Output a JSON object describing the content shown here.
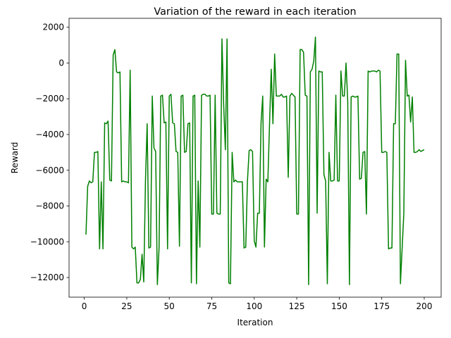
{
  "chart_data": {
    "type": "line",
    "title": "Variation of the reward in each iteration",
    "x_label": "Iteration",
    "y_label": "Reward",
    "x": [
      1,
      2,
      3,
      4,
      5,
      6,
      7,
      8,
      9,
      10,
      11,
      12,
      13,
      14,
      15,
      16,
      17,
      18,
      19,
      20,
      21,
      22,
      23,
      24,
      25,
      26,
      27,
      28,
      29,
      30,
      31,
      32,
      33,
      34,
      35,
      36,
      37,
      38,
      39,
      40,
      41,
      42,
      43,
      44,
      45,
      46,
      47,
      48,
      49,
      50,
      51,
      52,
      53,
      54,
      55,
      56,
      57,
      58,
      59,
      60,
      61,
      62,
      63,
      64,
      65,
      66,
      67,
      68,
      69,
      70,
      71,
      72,
      73,
      74,
      75,
      76,
      77,
      78,
      79,
      80,
      81,
      82,
      83,
      84,
      85,
      86,
      87,
      88,
      89,
      90,
      91,
      92,
      93,
      94,
      95,
      96,
      97,
      98,
      99,
      100,
      101,
      102,
      103,
      104,
      105,
      106,
      107,
      108,
      109,
      110,
      111,
      112,
      113,
      114,
      115,
      116,
      117,
      118,
      119,
      120,
      121,
      122,
      123,
      124,
      125,
      126,
      127,
      128,
      129,
      130,
      131,
      132,
      133,
      134,
      135,
      136,
      137,
      138,
      139,
      140,
      141,
      142,
      143,
      144,
      145,
      146,
      147,
      148,
      149,
      150,
      151,
      152,
      153,
      154,
      155,
      156,
      157,
      158,
      159,
      160,
      161,
      162,
      163,
      164,
      165,
      166,
      167,
      168,
      169,
      170,
      171,
      172,
      173,
      174,
      175,
      176,
      177,
      178,
      179,
      180,
      181,
      182,
      183,
      184,
      185,
      186,
      187,
      188,
      189,
      190,
      191,
      192,
      193,
      194,
      195,
      196,
      197,
      198,
      199,
      200
    ],
    "series": [
      {
        "name": "Reward",
        "color": "#008000",
        "values": [
          -9600,
          -6900,
          -6600,
          -6700,
          -6650,
          -5000,
          -5000,
          -4950,
          -10400,
          -6650,
          -10400,
          -3350,
          -3400,
          -3250,
          -6550,
          -6600,
          450,
          750,
          -500,
          -550,
          -500,
          -6650,
          -6600,
          -6650,
          -6650,
          -6700,
          -400,
          -10300,
          -10400,
          -10300,
          -12300,
          -12300,
          -12100,
          -10700,
          -12250,
          -6600,
          -3400,
          -10350,
          -10300,
          -1850,
          -4750,
          -4950,
          -12400,
          -10350,
          -1850,
          -1800,
          -3350,
          -3300,
          -10400,
          -1850,
          -1750,
          -3350,
          -3400,
          -4950,
          -5000,
          -10250,
          -1850,
          -1800,
          -5000,
          -4950,
          -3400,
          -3350,
          -12300,
          -1850,
          -1800,
          -12350,
          -6600,
          -10300,
          -1800,
          -1750,
          -1750,
          -1850,
          -1850,
          -1800,
          -8450,
          -8450,
          -1800,
          -8400,
          -8450,
          -8450,
          1350,
          -2300,
          -4850,
          1350,
          -12300,
          -12350,
          -5000,
          -6650,
          -6550,
          -6650,
          -6650,
          -6650,
          -6650,
          -10350,
          -10300,
          -6600,
          -4900,
          -4850,
          -4950,
          -9950,
          -10300,
          -8400,
          -8400,
          -3350,
          -1850,
          -10300,
          -6500,
          -6650,
          -3400,
          -350,
          -3400,
          500,
          -1850,
          -1850,
          -1850,
          -1750,
          -1900,
          -1900,
          -1850,
          -6400,
          -1850,
          -1700,
          -1800,
          -1900,
          -8450,
          -8450,
          750,
          750,
          600,
          -1800,
          -1850,
          -12400,
          -500,
          -350,
          100,
          1450,
          -8400,
          -450,
          -500,
          -500,
          -6250,
          -6600,
          -12350,
          -5000,
          -6600,
          -6600,
          -6550,
          -1800,
          -6600,
          -6600,
          -450,
          -1850,
          -1850,
          0,
          -2150,
          -12400,
          -1900,
          -1850,
          -1900,
          -1900,
          -1850,
          -6500,
          -6450,
          -5000,
          -4950,
          -8450,
          -450,
          -500,
          -450,
          -450,
          -450,
          -500,
          -400,
          -450,
          -5000,
          -5000,
          -4950,
          -5000,
          -10400,
          -10350,
          -10350,
          -3400,
          -3400,
          500,
          500,
          -12350,
          -10400,
          -8400,
          150,
          -1850,
          -1800,
          -3300,
          -1900,
          -5000,
          -5000,
          -4950,
          -4850,
          -4950,
          -4900,
          -4850
        ]
      }
    ],
    "xlim": [
      -8.95,
      209.95
    ],
    "ylim": [
      -13100,
      2500
    ],
    "xticks": [
      0,
      25,
      50,
      75,
      100,
      125,
      150,
      175,
      200
    ],
    "yticks": [
      {
        "value": -12000,
        "label": "−12000"
      },
      {
        "value": -10000,
        "label": "−10000"
      },
      {
        "value": -8000,
        "label": "−8000"
      },
      {
        "value": -6000,
        "label": "−6000"
      },
      {
        "value": -4000,
        "label": "−4000"
      },
      {
        "value": -2000,
        "label": "−2000"
      },
      0,
      2000
    ],
    "grid": false
  }
}
